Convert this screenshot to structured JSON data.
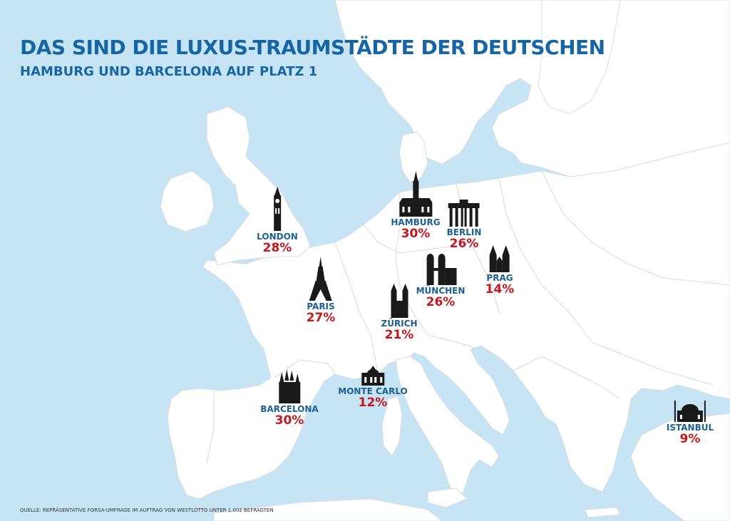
{
  "title": "DAS SIND DIE LUXUS-TRAUMSTÄDTE DER DEUTSCHEN",
  "subtitle": "HAMBURG UND BARCELONA AUF PLATZ 1",
  "source": "QUELLE: REPRÄSENTATIVE FORSA-UMFRAGE IM AUFTRAG VON WESTLOTTO UNTER 1.002 BEFRAGTEN",
  "colors": {
    "sea": "#c7e4f5",
    "land": "#ffffff",
    "title": "#1666a5",
    "city_name": "#1d5f92",
    "percent": "#c4161c",
    "icon": "#1a1a1a"
  },
  "cities": [
    {
      "name": "LONDON",
      "percent": "28%",
      "icon": "big-ben-icon"
    },
    {
      "name": "HAMBURG",
      "percent": "30%",
      "icon": "hamburg-town-hall-icon"
    },
    {
      "name": "BERLIN",
      "percent": "26%",
      "icon": "brandenburg-gate-icon"
    },
    {
      "name": "PRAG",
      "percent": "14%",
      "icon": "tyn-church-icon"
    },
    {
      "name": "MÜNCHEN",
      "percent": "26%",
      "icon": "frauenkirche-icon"
    },
    {
      "name": "PARIS",
      "percent": "27%",
      "icon": "eiffel-tower-icon"
    },
    {
      "name": "ZÜRICH",
      "percent": "21%",
      "icon": "grossmuenster-icon"
    },
    {
      "name": "MONTE CARLO",
      "percent": "12%",
      "icon": "monte-carlo-casino-icon"
    },
    {
      "name": "BARCELONA",
      "percent": "30%",
      "icon": "sagrada-familia-icon"
    },
    {
      "name": "ISTANBUL",
      "percent": "9%",
      "icon": "mosque-icon"
    }
  ]
}
